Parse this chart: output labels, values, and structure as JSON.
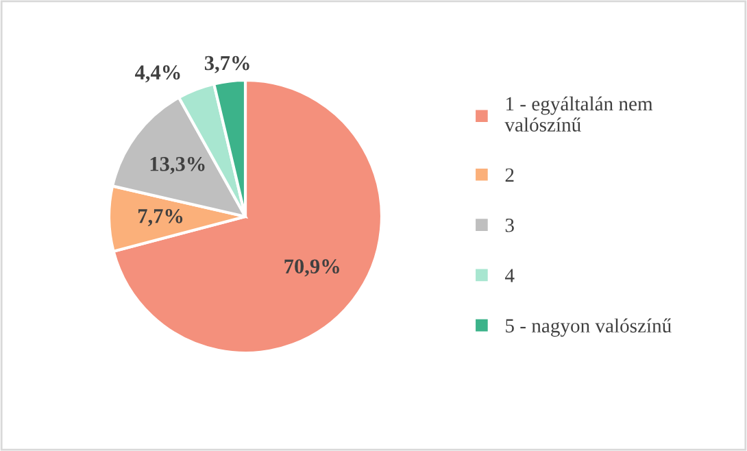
{
  "chart_data": {
    "type": "pie",
    "categories": [
      "1 - egyáltalán nem\nvalószínű",
      "2",
      "3",
      "4",
      "5 - nagyon valószínű"
    ],
    "values": [
      70.9,
      7.7,
      13.3,
      4.4,
      3.7
    ],
    "value_labels": [
      "70,9%",
      "7,7%",
      "13,3%",
      "4,4%",
      "3,7%"
    ],
    "colors": [
      "#f4907c",
      "#fbb07a",
      "#bfbfbf",
      "#a8e6d0",
      "#3cb38a"
    ],
    "legend": "right"
  }
}
